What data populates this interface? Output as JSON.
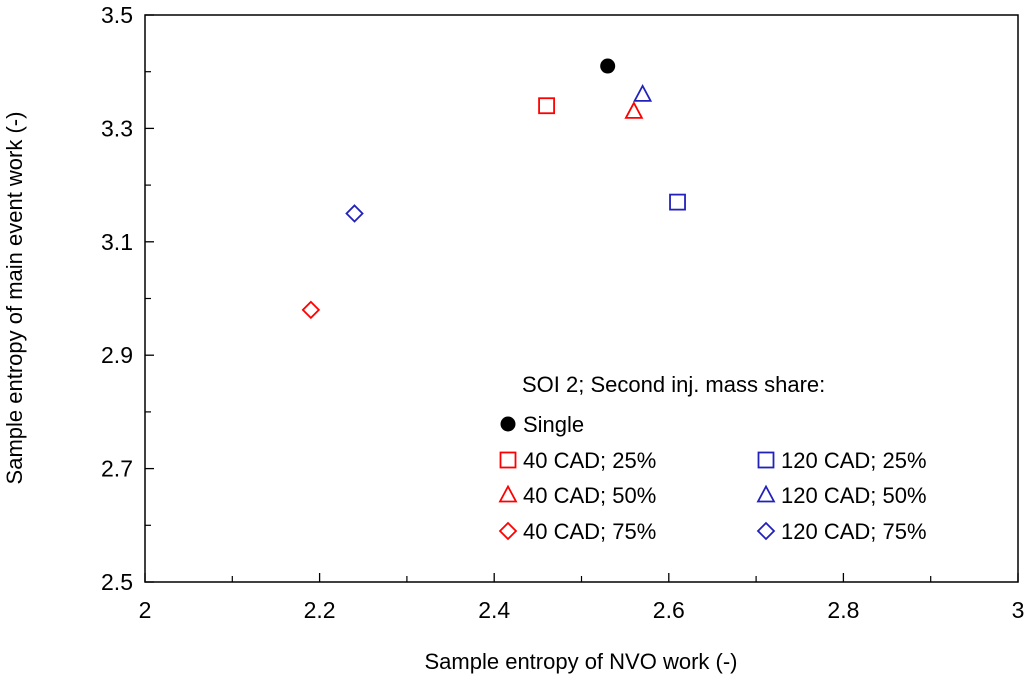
{
  "chart_data": {
    "type": "scatter",
    "title": "",
    "xlabel": "Sample entropy of NVO work (-)",
    "ylabel": "Sample entropy of main event work (-)",
    "xlim": [
      2,
      3
    ],
    "ylim": [
      2.5,
      3.5
    ],
    "x_ticks": [
      2,
      2.2,
      2.4,
      2.6,
      2.8,
      3
    ],
    "x_tick_labels": [
      "2",
      "2.2",
      "2.4",
      "2.6",
      "2.8",
      "3"
    ],
    "x_minor_ticks": [
      2.1,
      2.3,
      2.5,
      2.7,
      2.9
    ],
    "y_ticks": [
      2.5,
      2.7,
      2.9,
      3.1,
      3.3,
      3.5
    ],
    "y_tick_labels": [
      "2.5",
      "2.7",
      "2.9",
      "3.1",
      "3.3",
      "3.5"
    ],
    "y_minor_ticks": [
      2.6,
      2.8,
      3.0,
      3.2,
      3.4
    ],
    "grid": false,
    "legend_title": "SOI 2; Second inj. mass share:",
    "legend_position": "bottom-right",
    "series": [
      {
        "name": "Single",
        "marker": "circle-filled",
        "color": "#000000",
        "points": [
          {
            "x": 2.53,
            "y": 3.41
          }
        ]
      },
      {
        "name": "40 CAD; 25%",
        "marker": "square",
        "color": "#ff0000",
        "points": [
          {
            "x": 2.46,
            "y": 3.34
          }
        ]
      },
      {
        "name": "40 CAD; 50%",
        "marker": "triangle",
        "color": "#ff0000",
        "points": [
          {
            "x": 2.56,
            "y": 3.33
          }
        ]
      },
      {
        "name": "40 CAD; 75%",
        "marker": "diamond",
        "color": "#ff0000",
        "points": [
          {
            "x": 2.19,
            "y": 2.98
          }
        ]
      },
      {
        "name": "120 CAD; 25%",
        "marker": "square",
        "color": "#2222bb",
        "points": [
          {
            "x": 2.61,
            "y": 3.17
          }
        ]
      },
      {
        "name": "120 CAD; 50%",
        "marker": "triangle",
        "color": "#2222bb",
        "points": [
          {
            "x": 2.57,
            "y": 3.36
          }
        ]
      },
      {
        "name": "120 CAD; 75%",
        "marker": "diamond",
        "color": "#2222bb",
        "points": [
          {
            "x": 2.24,
            "y": 3.15
          }
        ]
      }
    ]
  }
}
